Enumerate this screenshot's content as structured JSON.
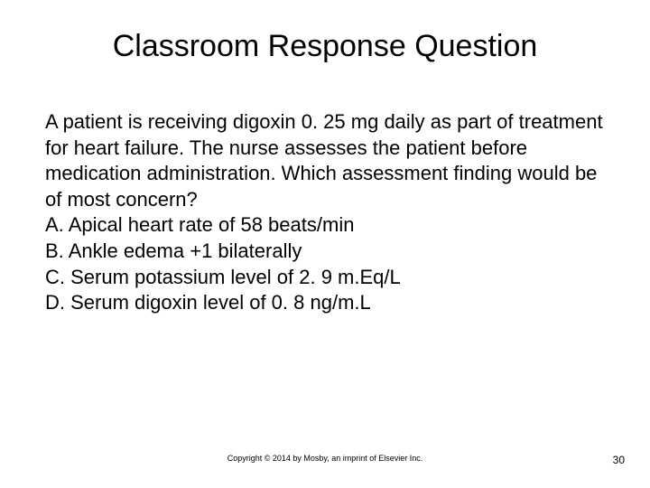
{
  "slide": {
    "title": "Classroom Response Question",
    "question": "A patient is receiving digoxin 0. 25 mg daily as part of treatment for heart failure. The nurse assesses the patient before medication administration. Which assessment finding would be of most concern?",
    "options": [
      {
        "letter": "A.",
        "text": "Apical heart rate of 58 beats/min"
      },
      {
        "letter": "B.",
        "text": "Ankle edema +1 bilaterally"
      },
      {
        "letter": "C.",
        "text": "Serum potassium level of 2. 9 m.Eq/L"
      },
      {
        "letter": "D.",
        "text": "Serum digoxin level of 0. 8 ng/m.L"
      }
    ],
    "copyright": "Copyright © 2014 by Mosby, an imprint of Elsevier Inc.",
    "page_number": "30"
  },
  "styling": {
    "background_color": "#ffffff",
    "text_color": "#000000",
    "title_fontsize": 34,
    "body_fontsize": 22,
    "copyright_fontsize": 9,
    "page_number_fontsize": 12,
    "font_family": "Arial"
  }
}
